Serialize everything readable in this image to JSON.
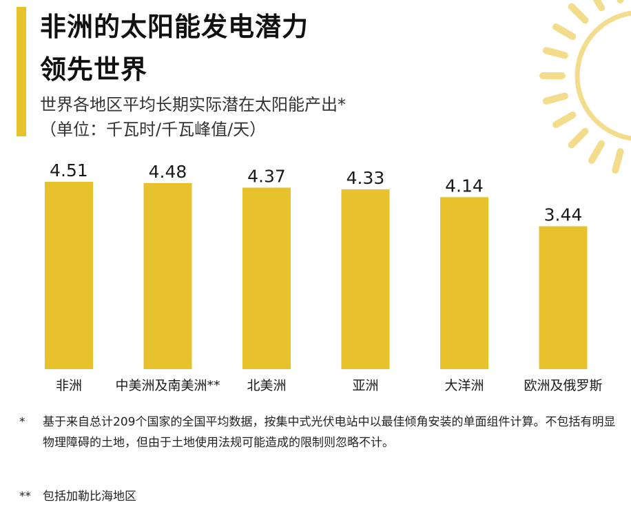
{
  "header": {
    "title_line1": "非洲的太阳能发电潜力",
    "title_line2": "领先世界",
    "subtitle_line1": "世界各地区平均长期实际潜在太阳能产出*",
    "subtitle_line2": "（单位：千瓦时/千瓦峰值/天）"
  },
  "colors": {
    "accent": "#e8c22c",
    "sun": "#f3dc8c"
  },
  "chart_data": {
    "type": "bar",
    "categories": [
      "非洲",
      "中美洲及南美洲**",
      "北美洲",
      "亚洲",
      "大洋洲",
      "欧洲及俄罗斯"
    ],
    "values": [
      4.51,
      4.48,
      4.37,
      4.33,
      4.14,
      3.44
    ],
    "value_labels": [
      "4.51",
      "4.48",
      "4.37",
      "4.33",
      "4.14",
      "3.44"
    ],
    "title": "非洲的太阳能发电潜力领先世界",
    "subtitle": "世界各地区平均长期实际潜在太阳能产出*（单位：千瓦时/千瓦峰值/天）",
    "xlabel": "",
    "ylabel": "",
    "ylim": [
      0,
      4.51
    ],
    "grid": false,
    "legend": "none"
  },
  "footnotes": {
    "note1_mark": "*",
    "note1_text": "基于来自总计209个国家的全国平均数据，按集中式光伏电站中以最佳倾角安装的单面组件计算。不包括有明显物理障碍的土地，但由于土地使用法规可能造成的限制则忽略不计。",
    "note2_mark": "**",
    "note2_text": "包括加勒比海地区"
  }
}
